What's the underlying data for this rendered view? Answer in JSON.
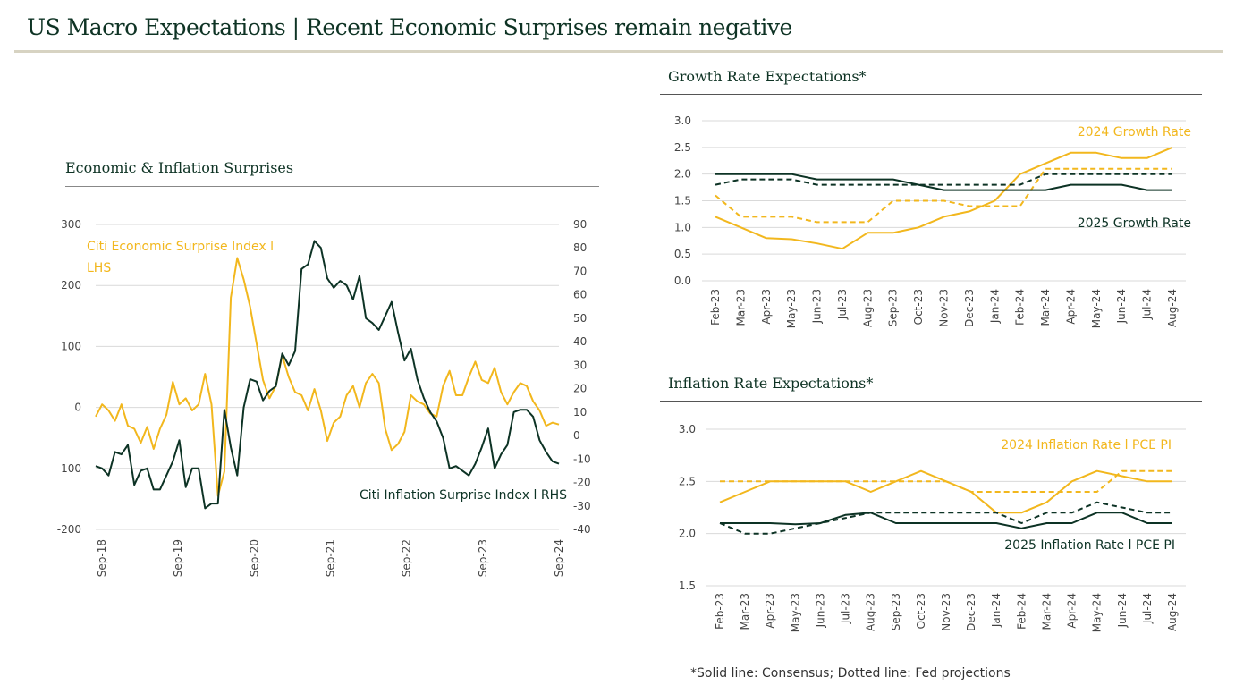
{
  "title": "US Macro Expectations | Recent Economic Surprises remain negative",
  "footnote": "*Solid line: Consensus; Dotted line: Fed projections",
  "colors": {
    "gold": "#f2b71d",
    "dark": "#0d3325",
    "grid": "#d9d9d9"
  },
  "chart_data": [
    {
      "type": "line",
      "title": "Economic & Inflation Surprises",
      "x_ticks": [
        "Sep-18",
        "Sep-19",
        "Sep-20",
        "Sep-21",
        "Sep-22",
        "Sep-23",
        "Sep-24"
      ],
      "ylim_left": [
        -200,
        300
      ],
      "ylim_right": [
        -40,
        90
      ],
      "y_ticks_left": [
        300,
        200,
        100,
        0,
        -100,
        -200
      ],
      "y_ticks_right": [
        90,
        80,
        70,
        60,
        50,
        40,
        30,
        20,
        10,
        0,
        -10,
        -20,
        -30,
        -40
      ],
      "series": [
        {
          "name": "Citi Economic Surprise Index l LHS",
          "label_lines": [
            "Citi Economic Surprise Index l",
            "LHS"
          ],
          "axis": "left",
          "color": "#f2b71d",
          "values": [
            -15,
            5,
            -5,
            -22,
            5,
            -30,
            -35,
            -58,
            -32,
            -68,
            -35,
            -12,
            42,
            5,
            15,
            -5,
            5,
            55,
            5,
            -145,
            -105,
            180,
            245,
            210,
            165,
            105,
            45,
            15,
            35,
            85,
            50,
            25,
            20,
            -5,
            30,
            -5,
            -55,
            -25,
            -15,
            20,
            35,
            0,
            40,
            55,
            40,
            -35,
            -70,
            -60,
            -40,
            20,
            10,
            5,
            -10,
            -15,
            35,
            60,
            20,
            20,
            50,
            75,
            45,
            40,
            65,
            25,
            5,
            25,
            40,
            35,
            10,
            -5,
            -30,
            -25,
            -28
          ]
        },
        {
          "name": "Citi Inflation Surprise Index l RHS",
          "label_lines": [
            "Citi Inflation Surprise Index l RHS"
          ],
          "axis": "right",
          "color": "#0d3325",
          "values": [
            -13,
            -14,
            -17,
            -7,
            -8,
            -4,
            -21,
            -15,
            -14,
            -23,
            -23,
            -17,
            -11,
            -2,
            -22,
            -14,
            -14,
            -31,
            -29,
            -29,
            11,
            -5,
            -17,
            12,
            24,
            23,
            15,
            19,
            21,
            35,
            30,
            36,
            71,
            73,
            83,
            80,
            67,
            63,
            66,
            64,
            58,
            68,
            50,
            48,
            45,
            51,
            57,
            44,
            32,
            37,
            24,
            16,
            10,
            6,
            -1,
            -14,
            -13,
            -15,
            -17,
            -12,
            -5,
            3,
            -14,
            -8,
            -4,
            10,
            11,
            11,
            8,
            -2,
            -7,
            -11,
            -12
          ]
        }
      ]
    },
    {
      "type": "line",
      "title": "Growth Rate Expectations*",
      "categories": [
        "Feb-23",
        "Mar-23",
        "Apr-23",
        "May-23",
        "Jun-23",
        "Jul-23",
        "Aug-23",
        "Sep-23",
        "Oct-23",
        "Nov-23",
        "Dec-23",
        "Jan-24",
        "Feb-24",
        "Mar-24",
        "Apr-24",
        "May-24",
        "Jun-24",
        "Jul-24",
        "Aug-24"
      ],
      "ylim": [
        0,
        3
      ],
      "y_ticks": [
        "3.0",
        "2.5",
        "2.0",
        "1.5",
        "1.0",
        "0.5",
        "0.0"
      ],
      "series": [
        {
          "name": "2024 Growth Rate",
          "style": "solid",
          "color": "#f2b71d",
          "label": "2024 Growth Rate",
          "values": [
            1.2,
            1.0,
            0.8,
            0.78,
            0.7,
            0.6,
            0.9,
            0.9,
            1.0,
            1.2,
            1.3,
            1.5,
            2.0,
            2.2,
            2.4,
            2.4,
            2.3,
            2.3,
            2.5
          ]
        },
        {
          "name": "2024 Growth Rate (Fed)",
          "style": "dotted",
          "color": "#f2b71d",
          "values": [
            1.6,
            1.2,
            1.2,
            1.2,
            1.1,
            1.1,
            1.1,
            1.5,
            1.5,
            1.5,
            1.4,
            1.4,
            1.4,
            2.1,
            2.1,
            2.1,
            2.1,
            2.1,
            2.1
          ]
        },
        {
          "name": "2025 Growth Rate",
          "style": "solid",
          "color": "#0d3325",
          "label": "2025 Growth Rate",
          "values": [
            2.0,
            2.0,
            2.0,
            2.0,
            1.9,
            1.9,
            1.9,
            1.9,
            1.8,
            1.7,
            1.7,
            1.7,
            1.7,
            1.7,
            1.8,
            1.8,
            1.8,
            1.7,
            1.7
          ]
        },
        {
          "name": "2025 Growth Rate (Fed)",
          "style": "dotted",
          "color": "#0d3325",
          "values": [
            1.8,
            1.9,
            1.9,
            1.9,
            1.8,
            1.8,
            1.8,
            1.8,
            1.8,
            1.8,
            1.8,
            1.8,
            1.8,
            2.0,
            2.0,
            2.0,
            2.0,
            2.0,
            2.0
          ]
        }
      ]
    },
    {
      "type": "line",
      "title": "Inflation Rate Expectations*",
      "categories": [
        "Feb-23",
        "Mar-23",
        "Apr-23",
        "May-23",
        "Jun-23",
        "Jul-23",
        "Aug-23",
        "Sep-23",
        "Oct-23",
        "Nov-23",
        "Dec-23",
        "Jan-24",
        "Feb-24",
        "Mar-24",
        "Apr-24",
        "May-24",
        "Jun-24",
        "Jul-24",
        "Aug-24"
      ],
      "ylim": [
        1.5,
        3
      ],
      "y_ticks": [
        "3.0",
        "2.5",
        "2.0",
        "1.5"
      ],
      "series": [
        {
          "name": "2024 Inflation Rate l PCE PI",
          "style": "solid",
          "color": "#f2b71d",
          "label": "2024 Inflation Rate l PCE PI",
          "values": [
            2.3,
            2.4,
            2.5,
            2.5,
            2.5,
            2.5,
            2.4,
            2.5,
            2.6,
            2.5,
            2.4,
            2.2,
            2.2,
            2.3,
            2.5,
            2.6,
            2.55,
            2.5,
            2.5
          ]
        },
        {
          "name": "2024 Inflation Rate (Fed)",
          "style": "dotted",
          "color": "#f2b71d",
          "values": [
            2.5,
            2.5,
            2.5,
            2.5,
            2.5,
            2.5,
            2.5,
            2.5,
            2.5,
            2.5,
            2.4,
            2.4,
            2.4,
            2.4,
            2.4,
            2.4,
            2.6,
            2.6,
            2.6
          ]
        },
        {
          "name": "2025 Inflation Rate l PCE PI",
          "style": "solid",
          "color": "#0d3325",
          "label": "2025 Inflation Rate l PCE PI",
          "values": [
            2.1,
            2.1,
            2.1,
            2.09,
            2.1,
            2.18,
            2.2,
            2.1,
            2.1,
            2.1,
            2.1,
            2.1,
            2.05,
            2.1,
            2.1,
            2.2,
            2.2,
            2.1,
            2.1
          ]
        },
        {
          "name": "2025 Inflation Rate (Fed)",
          "style": "dotted",
          "color": "#0d3325",
          "values": [
            2.1,
            2.0,
            2.0,
            2.05,
            2.1,
            2.15,
            2.2,
            2.2,
            2.2,
            2.2,
            2.2,
            2.2,
            2.1,
            2.2,
            2.2,
            2.3,
            2.25,
            2.2,
            2.2
          ]
        }
      ]
    }
  ]
}
